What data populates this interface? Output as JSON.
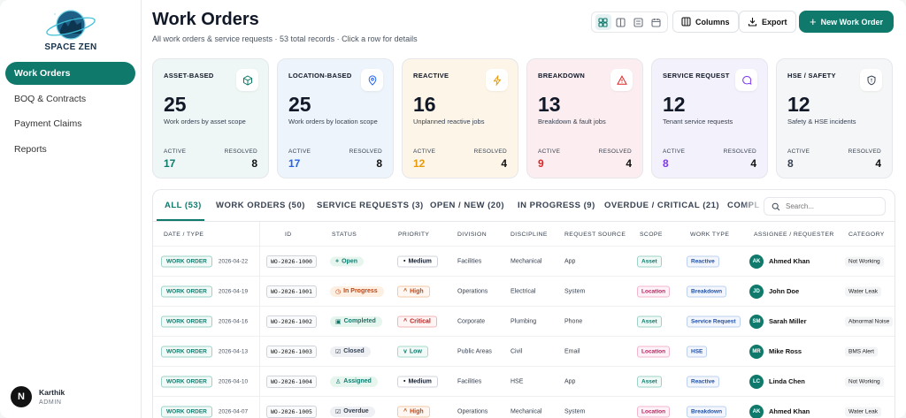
{
  "app": {
    "brand": "SPACE ZEN"
  },
  "sidebar": {
    "items": [
      {
        "label": "Work Orders",
        "active": true
      },
      {
        "label": "BOQ & Contracts",
        "active": false
      },
      {
        "label": "Payment Claims",
        "active": false
      },
      {
        "label": "Reports",
        "active": false
      }
    ]
  },
  "user": {
    "initial": "N",
    "name": "Karthik",
    "role": "ADMIN"
  },
  "header": {
    "title": "Work Orders",
    "subtitle": "All work orders & service requests · 53 total records · Click a row for details",
    "columns_label": "Columns",
    "export_label": "Export",
    "new_label": "New Work Order",
    "view_icons": [
      "grid-view-icon",
      "split-view-icon",
      "list-view-icon",
      "calendar-view-icon"
    ]
  },
  "cards": [
    {
      "title": "ASSET-BASED",
      "count": "25",
      "desc": "Work orders by asset scope",
      "active_label": "ACTIVE",
      "active": "17",
      "resolved_label": "RESOLVED",
      "resolved": "8",
      "icon": "cube-icon",
      "bg": "#eef7f5",
      "accent": "#0f7a6b"
    },
    {
      "title": "LOCATION-BASED",
      "count": "25",
      "desc": "Work orders by location scope",
      "active_label": "ACTIVE",
      "active": "17",
      "resolved_label": "RESOLVED",
      "resolved": "8",
      "icon": "map-pin-icon",
      "bg": "#edf4fb",
      "accent": "#2563eb"
    },
    {
      "title": "REACTIVE",
      "count": "16",
      "desc": "Unplanned reactive jobs",
      "active_label": "ACTIVE",
      "active": "12",
      "resolved_label": "RESOLVED",
      "resolved": "4",
      "icon": "lightning-icon",
      "bg": "#fdf6e8",
      "accent": "#e89a0c"
    },
    {
      "title": "BREAKDOWN",
      "count": "13",
      "desc": "Breakdown & fault jobs",
      "active_label": "ACTIVE",
      "active": "9",
      "resolved_label": "RESOLVED",
      "resolved": "4",
      "icon": "warning-icon",
      "bg": "#fceef0",
      "accent": "#dc2626"
    },
    {
      "title": "SERVICE REQUEST",
      "count": "12",
      "desc": "Tenant service requests",
      "active_label": "ACTIVE",
      "active": "8",
      "resolved_label": "RESOLVED",
      "resolved": "4",
      "icon": "chat-icon",
      "bg": "#f3f1fb",
      "accent": "#7c3aed"
    },
    {
      "title": "HSE / SAFETY",
      "count": "12",
      "desc": "Safety & HSE incidents",
      "active_label": "ACTIVE",
      "active": "8",
      "resolved_label": "RESOLVED",
      "resolved": "4",
      "icon": "shield-alert-icon",
      "bg": "#f5f6f7",
      "accent": "#374151"
    }
  ],
  "tabs": [
    "ALL (53)",
    "WORK ORDERS (50)",
    "SERVICE REQUESTS (3)",
    "OPEN / NEW (20)",
    "IN PROGRESS (9)",
    "OVERDUE / CRITICAL (21)",
    "COMPL"
  ],
  "search": {
    "placeholder": "Search..."
  },
  "columns": [
    "DATE / TYPE",
    "ID",
    "STATUS",
    "PRIORITY",
    "DIVISION",
    "DISCIPLINE",
    "REQUEST SOURCE",
    "SCOPE",
    "WORK TYPE",
    "ASSIGNEE / REQUESTER",
    "CATEGORY"
  ],
  "rows": [
    {
      "type": "WORK ORDER",
      "date": "2026-04-22",
      "id": "WO-2026-1000",
      "status": "Open",
      "priority": "Medium",
      "division": "Facilities",
      "discipline": "Mechanical",
      "source": "App",
      "scope": "Asset",
      "work_type": "Reactive",
      "initials": "AK",
      "assignee": "Ahmed Khan",
      "category": "Not Working"
    },
    {
      "type": "WORK ORDER",
      "date": "2026-04-19",
      "id": "WO-2026-1001",
      "status": "In Progress",
      "priority": "High",
      "division": "Operations",
      "discipline": "Electrical",
      "source": "System",
      "scope": "Location",
      "work_type": "Breakdown",
      "initials": "JD",
      "assignee": "John Doe",
      "category": "Water Leak"
    },
    {
      "type": "WORK ORDER",
      "date": "2026-04-16",
      "id": "WO-2026-1002",
      "status": "Completed",
      "priority": "Critical",
      "division": "Corporate",
      "discipline": "Plumbing",
      "source": "Phone",
      "scope": "Asset",
      "work_type": "Service Request",
      "initials": "SM",
      "assignee": "Sarah Miller",
      "category": "Abnormal Noise"
    },
    {
      "type": "WORK ORDER",
      "date": "2026-04-13",
      "id": "WO-2026-1003",
      "status": "Closed",
      "priority": "Low",
      "division": "Public Areas",
      "discipline": "Civil",
      "source": "Email",
      "scope": "Location",
      "work_type": "HSE",
      "initials": "MR",
      "assignee": "Mike Ross",
      "category": "BMS Alert"
    },
    {
      "type": "WORK ORDER",
      "date": "2026-04-10",
      "id": "WO-2026-1004",
      "status": "Assigned",
      "priority": "Medium",
      "division": "Facilities",
      "discipline": "HSE",
      "source": "App",
      "scope": "Asset",
      "work_type": "Reactive",
      "initials": "LC",
      "assignee": "Linda Chen",
      "category": "Not Working"
    },
    {
      "type": "WORK ORDER",
      "date": "2026-04-07",
      "id": "WO-2026-1005",
      "status": "Overdue",
      "priority": "High",
      "division": "Operations",
      "discipline": "Mechanical",
      "source": "System",
      "scope": "Location",
      "work_type": "Breakdown",
      "initials": "AK",
      "assignee": "Ahmed Khan",
      "category": "Water Leak"
    }
  ],
  "colors": {
    "primary": "#0f7a6b"
  }
}
